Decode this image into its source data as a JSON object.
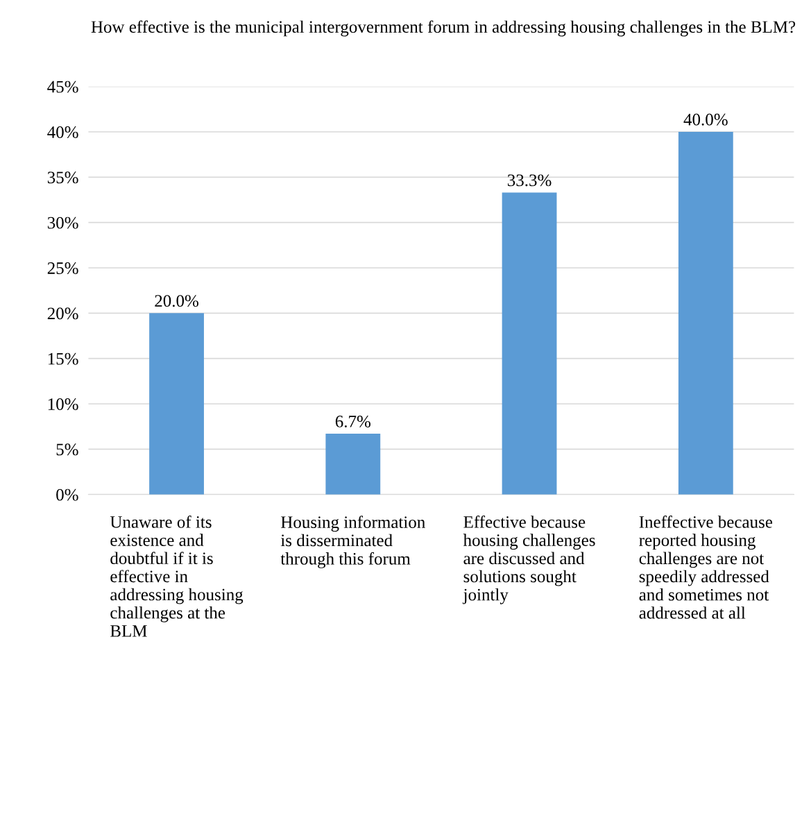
{
  "chart_data": {
    "type": "bar",
    "title": "How effective is the municipal intergovernment forum in addressing housing challenges in the BLM?",
    "categories": [
      "Unaware of its\nexistence and\ndoubtful if it is\neffective in\naddressing housing\nchallenges at the\nBLM",
      "Housing information\nis disserminated\nthrough this forum",
      "Effective because\nhousing challenges\nare discussed and\nsolutions sought\njointly",
      "Ineffective because\nreported housing\nchallenges are not\nspeedily addressed\nand sometimes not\naddressed at all"
    ],
    "values": [
      20.0,
      6.7,
      33.3,
      40.0
    ],
    "color": "#5b9bd5",
    "value_labels": [
      "20.0%",
      "6.7%",
      "33.3%",
      "40.0%"
    ],
    "ylim": [
      0,
      45
    ],
    "yticks": [
      {
        "value": 0,
        "label": "0%"
      },
      {
        "value": 5,
        "label": "5%"
      },
      {
        "value": 10,
        "label": "10%"
      },
      {
        "value": 15,
        "label": "15%"
      },
      {
        "value": 20,
        "label": "20%"
      },
      {
        "value": 25,
        "label": "25%"
      },
      {
        "value": 30,
        "label": "30%"
      },
      {
        "value": 35,
        "label": "35%"
      },
      {
        "value": 40,
        "label": "40%"
      },
      {
        "value": 45,
        "label": "45%"
      }
    ],
    "grid": "y",
    "legend": false
  }
}
